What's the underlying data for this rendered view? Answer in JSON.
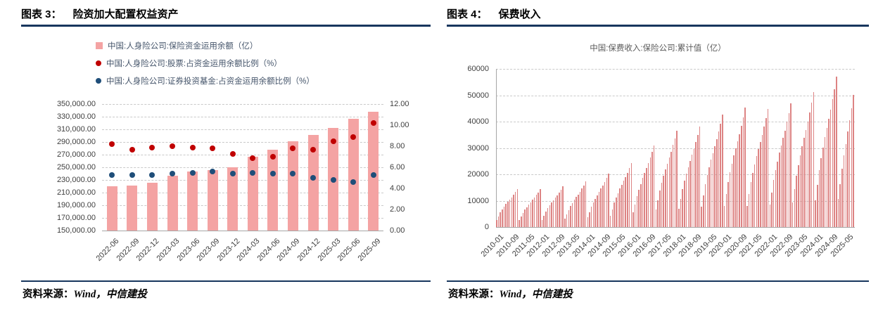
{
  "page": {
    "left_panel": {
      "header_prefix": "图表 3：",
      "header_title": "险资加大配置权益资产",
      "source_label": "资料来源：",
      "source_value": "Wind，中信建投"
    },
    "right_panel": {
      "header_prefix": "图表 4：",
      "header_title": "保费收入",
      "source_label": "资料来源：",
      "source_value": "Wind，中信建投"
    }
  },
  "colors": {
    "rule_navy": "#17365D",
    "bar_pink": "#F4A3A3",
    "thin_bar_red": "#DD8383",
    "stock_dot_red": "#C00000",
    "fund_dot_navy": "#1F4E79",
    "grid_gray": "#C9C9C9",
    "axis_gray": "#A6A6A6"
  },
  "chart_data": [
    {
      "id": "chart3",
      "type": "bar",
      "title": "险资加大配置权益资产",
      "grid": "dashed",
      "legend_position": "top-left",
      "categories": [
        "2022-06",
        "2022-09",
        "2022-12",
        "2023-03",
        "2023-06",
        "2023-09",
        "2023-12",
        "2024-03",
        "2024-06",
        "2024-09",
        "2024-12",
        "2025-03",
        "2025-06",
        "2025-09"
      ],
      "series": [
        {
          "name": "中国:人身险公司:保险资金运用余额（亿）",
          "type": "bar",
          "axis": "left",
          "color": "#F4A3A3",
          "values": [
            220000,
            221500,
            226000,
            236500,
            243000,
            246000,
            250500,
            266500,
            278000,
            291000,
            301500,
            312500,
            326500,
            337500
          ]
        },
        {
          "name": "中国:人身险公司:股票:占资金运用余额比例（%）",
          "type": "scatter",
          "axis": "right",
          "color": "#C00000",
          "values": [
            8.2,
            7.7,
            7.9,
            8.0,
            7.9,
            7.8,
            7.3,
            6.9,
            7.0,
            7.8,
            7.7,
            8.5,
            8.9,
            10.2
          ]
        },
        {
          "name": "中国:人身险公司:证券投资基金:占资金运用余额比例（%）",
          "type": "scatter",
          "axis": "right",
          "color": "#1F4E79",
          "values": [
            5.3,
            5.3,
            5.3,
            5.4,
            5.5,
            5.6,
            5.4,
            5.5,
            5.4,
            5.4,
            5.0,
            4.8,
            4.6,
            5.3
          ]
        }
      ],
      "left_axis": {
        "min": 150000,
        "max": 350000,
        "tick_labels": [
          "350,000.00",
          "330,000.00",
          "310,000.00",
          "290,000.00",
          "270,000.00",
          "250,000.00",
          "230,000.00",
          "210,000.00",
          "190,000.00",
          "170,000.00",
          "150,000.00"
        ]
      },
      "right_axis": {
        "min": 0,
        "max": 12,
        "tick_labels": [
          "12.00",
          "10.00",
          "8.00",
          "6.00",
          "4.00",
          "2.00",
          "0.00"
        ]
      }
    },
    {
      "id": "chart4",
      "type": "bar",
      "title": "中国:保费收入:保险公司:累计值（亿）",
      "grid": "dashed",
      "legend_position": "top-center",
      "x_start": "2010-01",
      "x_frequency": "monthly",
      "x_tick_interval_months": 8,
      "x_tick_labels": [
        "2010-01",
        "2010-09",
        "2011-05",
        "2012-01",
        "2012-09",
        "2013-05",
        "2014-01",
        "2014-09",
        "2015-05",
        "2016-01",
        "2016-09",
        "2017-05",
        "2018-01",
        "2018-09",
        "2019-05",
        "2020-01",
        "2020-09",
        "2021-05",
        "2022-01",
        "2022-09",
        "2023-05",
        "2024-01",
        "2024-09",
        "2025-05"
      ],
      "y_axis": {
        "min": 0,
        "max": 60000,
        "tick_labels": [
          "60000",
          "50000",
          "40000",
          "30000",
          "20000",
          "10000",
          "0"
        ]
      },
      "series_color": "#DD8383",
      "values": [
        2615,
        4068,
        5521,
        6683,
        7700,
        8717,
        9589,
        10460,
        11332,
        12349,
        13366,
        14528,
        2581,
        4015,
        5449,
        6596,
        7600,
        8603,
        9464,
        10324,
        11184,
        12188,
        13192,
        14339,
        2788,
        4337,
        5885,
        7124,
        8209,
        9293,
        10222,
        11151,
        12081,
        13165,
        14249,
        15488,
        3100,
        4822,
        6544,
        7922,
        9128,
        10333,
        11367,
        12400,
        13433,
        14639,
        15844,
        17222,
        3642,
        5666,
        7689,
        9308,
        10725,
        12141,
        13355,
        14569,
        15783,
        17200,
        18616,
        20235,
        4371,
        6799,
        9228,
        11170,
        12870,
        14570,
        16027,
        17484,
        18941,
        20641,
        22340,
        24283,
        5573,
        8669,
        11764,
        14241,
        16408,
        18575,
        20433,
        22290,
        24148,
        26315,
        28482,
        30959,
        6585,
        10243,
        13901,
        16827,
        19388,
        21949,
        24144,
        26338,
        28533,
        31094,
        33655,
        36581,
        6843,
        10645,
        14446,
        17488,
        20149,
        22810,
        25091,
        27372,
        29653,
        32314,
        34976,
        38017,
        7676,
        11941,
        16205,
        19617,
        22602,
        25587,
        28146,
        30704,
        33263,
        36248,
        39233,
        42645,
        8146,
        12672,
        17198,
        20818,
        23986,
        27154,
        29870,
        32585,
        35300,
        38468,
        41636,
        45257,
        8082,
        12572,
        17062,
        20654,
        23797,
        26940,
        29634,
        32328,
        35022,
        38165,
        41308,
        44900,
        8452,
        13148,
        17844,
        21600,
        24887,
        28174,
        30992,
        33809,
        36626,
        39913,
        43200,
        46957,
        9224,
        14349,
        19474,
        23574,
        27161,
        30748,
        33823,
        36898,
        39973,
        43560,
        47147,
        51247,
        10253,
        15950,
        21646,
        26203,
        30190,
        34178,
        37596,
        41013,
        44431,
        48419,
        52406,
        56963,
        10600,
        16300,
        22100,
        27200,
        31500,
        36200,
        40600,
        45200,
        50100
      ]
    }
  ]
}
